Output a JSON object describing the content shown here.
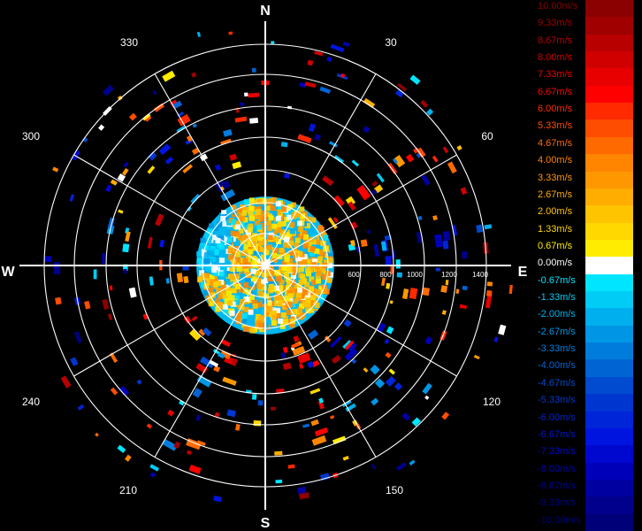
{
  "display": {
    "compass": {
      "north": "N",
      "south": "S",
      "east": "E",
      "west": "W"
    },
    "bearings": [
      "30",
      "60",
      "120",
      "150",
      "210",
      "240",
      "300",
      "330"
    ],
    "range_labels": [
      "600",
      "800",
      "1000",
      "1200",
      "1400"
    ],
    "colors": {
      "background": "#000000",
      "grid": "#ffffff"
    }
  },
  "legend": {
    "items": [
      {
        "label": "10.00m/s",
        "color": "#8b0000"
      },
      {
        "label": "9.33m/s",
        "color": "#a00000"
      },
      {
        "label": "8.67m/s",
        "color": "#b80000"
      },
      {
        "label": "8.00m/s",
        "color": "#d00000"
      },
      {
        "label": "7.33m/s",
        "color": "#e80000"
      },
      {
        "label": "6.67m/s",
        "color": "#ff0000"
      },
      {
        "label": "6.00m/s",
        "color": "#ff2a00"
      },
      {
        "label": "5.33m/s",
        "color": "#ff4d00"
      },
      {
        "label": "4.67m/s",
        "color": "#ff6a00"
      },
      {
        "label": "4.00m/s",
        "color": "#ff8500"
      },
      {
        "label": "3.33m/s",
        "color": "#ff9800"
      },
      {
        "label": "2.67m/s",
        "color": "#ffad00"
      },
      {
        "label": "2.00m/s",
        "color": "#ffc400"
      },
      {
        "label": "1.33m/s",
        "color": "#ffd800"
      },
      {
        "label": "0.67m/s",
        "color": "#ffec00"
      },
      {
        "label": "0.00m/s",
        "color": "#ffffff"
      },
      {
        "label": "-0.67m/s",
        "color": "#00e5ff"
      },
      {
        "label": "-1.33m/s",
        "color": "#00ccf5"
      },
      {
        "label": "-2.00m/s",
        "color": "#00b0ee"
      },
      {
        "label": "-2.67m/s",
        "color": "#0096e6"
      },
      {
        "label": "-3.33m/s",
        "color": "#007ddc"
      },
      {
        "label": "-4.00m/s",
        "color": "#0064d2"
      },
      {
        "label": "-4.67m/s",
        "color": "#004bd0"
      },
      {
        "label": "-5.33m/s",
        "color": "#0036d0"
      },
      {
        "label": "-6.00m/s",
        "color": "#0024d8"
      },
      {
        "label": "-6.67m/s",
        "color": "#0014e0"
      },
      {
        "label": "-7.33m/s",
        "color": "#0008d0"
      },
      {
        "label": "-8.00m/s",
        "color": "#0000b8"
      },
      {
        "label": "-8.67m/s",
        "color": "#0000a0"
      },
      {
        "label": "-9.33m/s",
        "color": "#00008c"
      },
      {
        "label": "-10.00m/s",
        "color": "#000078"
      }
    ]
  }
}
